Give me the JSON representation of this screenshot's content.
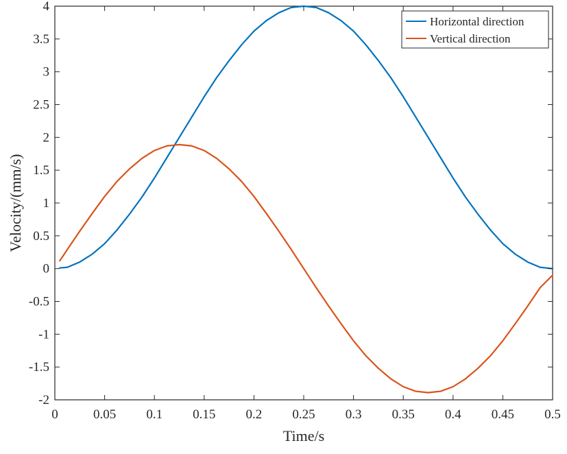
{
  "chart_data": {
    "type": "line",
    "title": "",
    "xlabel": "Time/s",
    "ylabel": "Velocity/(mm/s)",
    "xlim": [
      0,
      0.5
    ],
    "ylim": [
      -2,
      4
    ],
    "xticks": [
      0,
      0.05,
      0.1,
      0.15,
      0.2,
      0.25,
      0.3,
      0.35,
      0.4,
      0.45,
      0.5
    ],
    "xtick_labels": [
      "0",
      "0.05",
      "0.1",
      "0.15",
      "0.2",
      "0.25",
      "0.3",
      "0.35",
      "0.4",
      "0.45",
      "0.5"
    ],
    "yticks": [
      -2,
      -1.5,
      -1,
      -0.5,
      0,
      0.5,
      1,
      1.5,
      2,
      2.5,
      3,
      3.5,
      4
    ],
    "ytick_labels": [
      "-2",
      "-1.5",
      "-1",
      "-0.5",
      "0",
      "0.5",
      "1",
      "1.5",
      "2",
      "2.5",
      "3",
      "3.5",
      "4"
    ],
    "grid": false,
    "legend_position": "top-right",
    "series": [
      {
        "name": "Horizontal direction",
        "color": "#0072BD",
        "points": [
          [
            0.005,
            0.01
          ],
          [
            0.0125,
            0.02
          ],
          [
            0.025,
            0.1
          ],
          [
            0.0375,
            0.22
          ],
          [
            0.05,
            0.38
          ],
          [
            0.0625,
            0.59
          ],
          [
            0.075,
            0.83
          ],
          [
            0.0875,
            1.09
          ],
          [
            0.1,
            1.38
          ],
          [
            0.1125,
            1.69
          ],
          [
            0.125,
            2.0
          ],
          [
            0.1375,
            2.31
          ],
          [
            0.15,
            2.62
          ],
          [
            0.1625,
            2.91
          ],
          [
            0.175,
            3.17
          ],
          [
            0.1875,
            3.41
          ],
          [
            0.2,
            3.62
          ],
          [
            0.2125,
            3.78
          ],
          [
            0.225,
            3.9
          ],
          [
            0.2375,
            3.98
          ],
          [
            0.25,
            4.0
          ],
          [
            0.2625,
            3.98
          ],
          [
            0.275,
            3.9
          ],
          [
            0.2875,
            3.78
          ],
          [
            0.3,
            3.62
          ],
          [
            0.3125,
            3.41
          ],
          [
            0.325,
            3.17
          ],
          [
            0.3375,
            2.91
          ],
          [
            0.35,
            2.62
          ],
          [
            0.3625,
            2.31
          ],
          [
            0.375,
            2.0
          ],
          [
            0.3875,
            1.69
          ],
          [
            0.4,
            1.38
          ],
          [
            0.4125,
            1.09
          ],
          [
            0.425,
            0.83
          ],
          [
            0.4375,
            0.59
          ],
          [
            0.45,
            0.38
          ],
          [
            0.4625,
            0.22
          ],
          [
            0.475,
            0.1
          ],
          [
            0.4875,
            0.02
          ],
          [
            0.5,
            0.0
          ]
        ]
      },
      {
        "name": "Vertical direction",
        "color": "#D95319",
        "points": [
          [
            0.005,
            0.12
          ],
          [
            0.0125,
            0.29
          ],
          [
            0.025,
            0.57
          ],
          [
            0.0375,
            0.84
          ],
          [
            0.05,
            1.1
          ],
          [
            0.0625,
            1.33
          ],
          [
            0.075,
            1.52
          ],
          [
            0.0875,
            1.68
          ],
          [
            0.1,
            1.8
          ],
          [
            0.1125,
            1.87
          ],
          [
            0.125,
            1.89
          ],
          [
            0.1375,
            1.87
          ],
          [
            0.15,
            1.8
          ],
          [
            0.1625,
            1.68
          ],
          [
            0.175,
            1.52
          ],
          [
            0.1875,
            1.33
          ],
          [
            0.2,
            1.1
          ],
          [
            0.2125,
            0.84
          ],
          [
            0.225,
            0.57
          ],
          [
            0.2375,
            0.29
          ],
          [
            0.25,
            0.0
          ],
          [
            0.2625,
            -0.29
          ],
          [
            0.275,
            -0.57
          ],
          [
            0.2875,
            -0.84
          ],
          [
            0.3,
            -1.1
          ],
          [
            0.3125,
            -1.33
          ],
          [
            0.325,
            -1.52
          ],
          [
            0.3375,
            -1.68
          ],
          [
            0.35,
            -1.8
          ],
          [
            0.3625,
            -1.87
          ],
          [
            0.375,
            -1.89
          ],
          [
            0.3875,
            -1.87
          ],
          [
            0.4,
            -1.8
          ],
          [
            0.4125,
            -1.68
          ],
          [
            0.425,
            -1.52
          ],
          [
            0.4375,
            -1.33
          ],
          [
            0.45,
            -1.1
          ],
          [
            0.4625,
            -0.84
          ],
          [
            0.475,
            -0.57
          ],
          [
            0.4875,
            -0.29
          ],
          [
            0.5,
            -0.1
          ]
        ]
      }
    ]
  }
}
